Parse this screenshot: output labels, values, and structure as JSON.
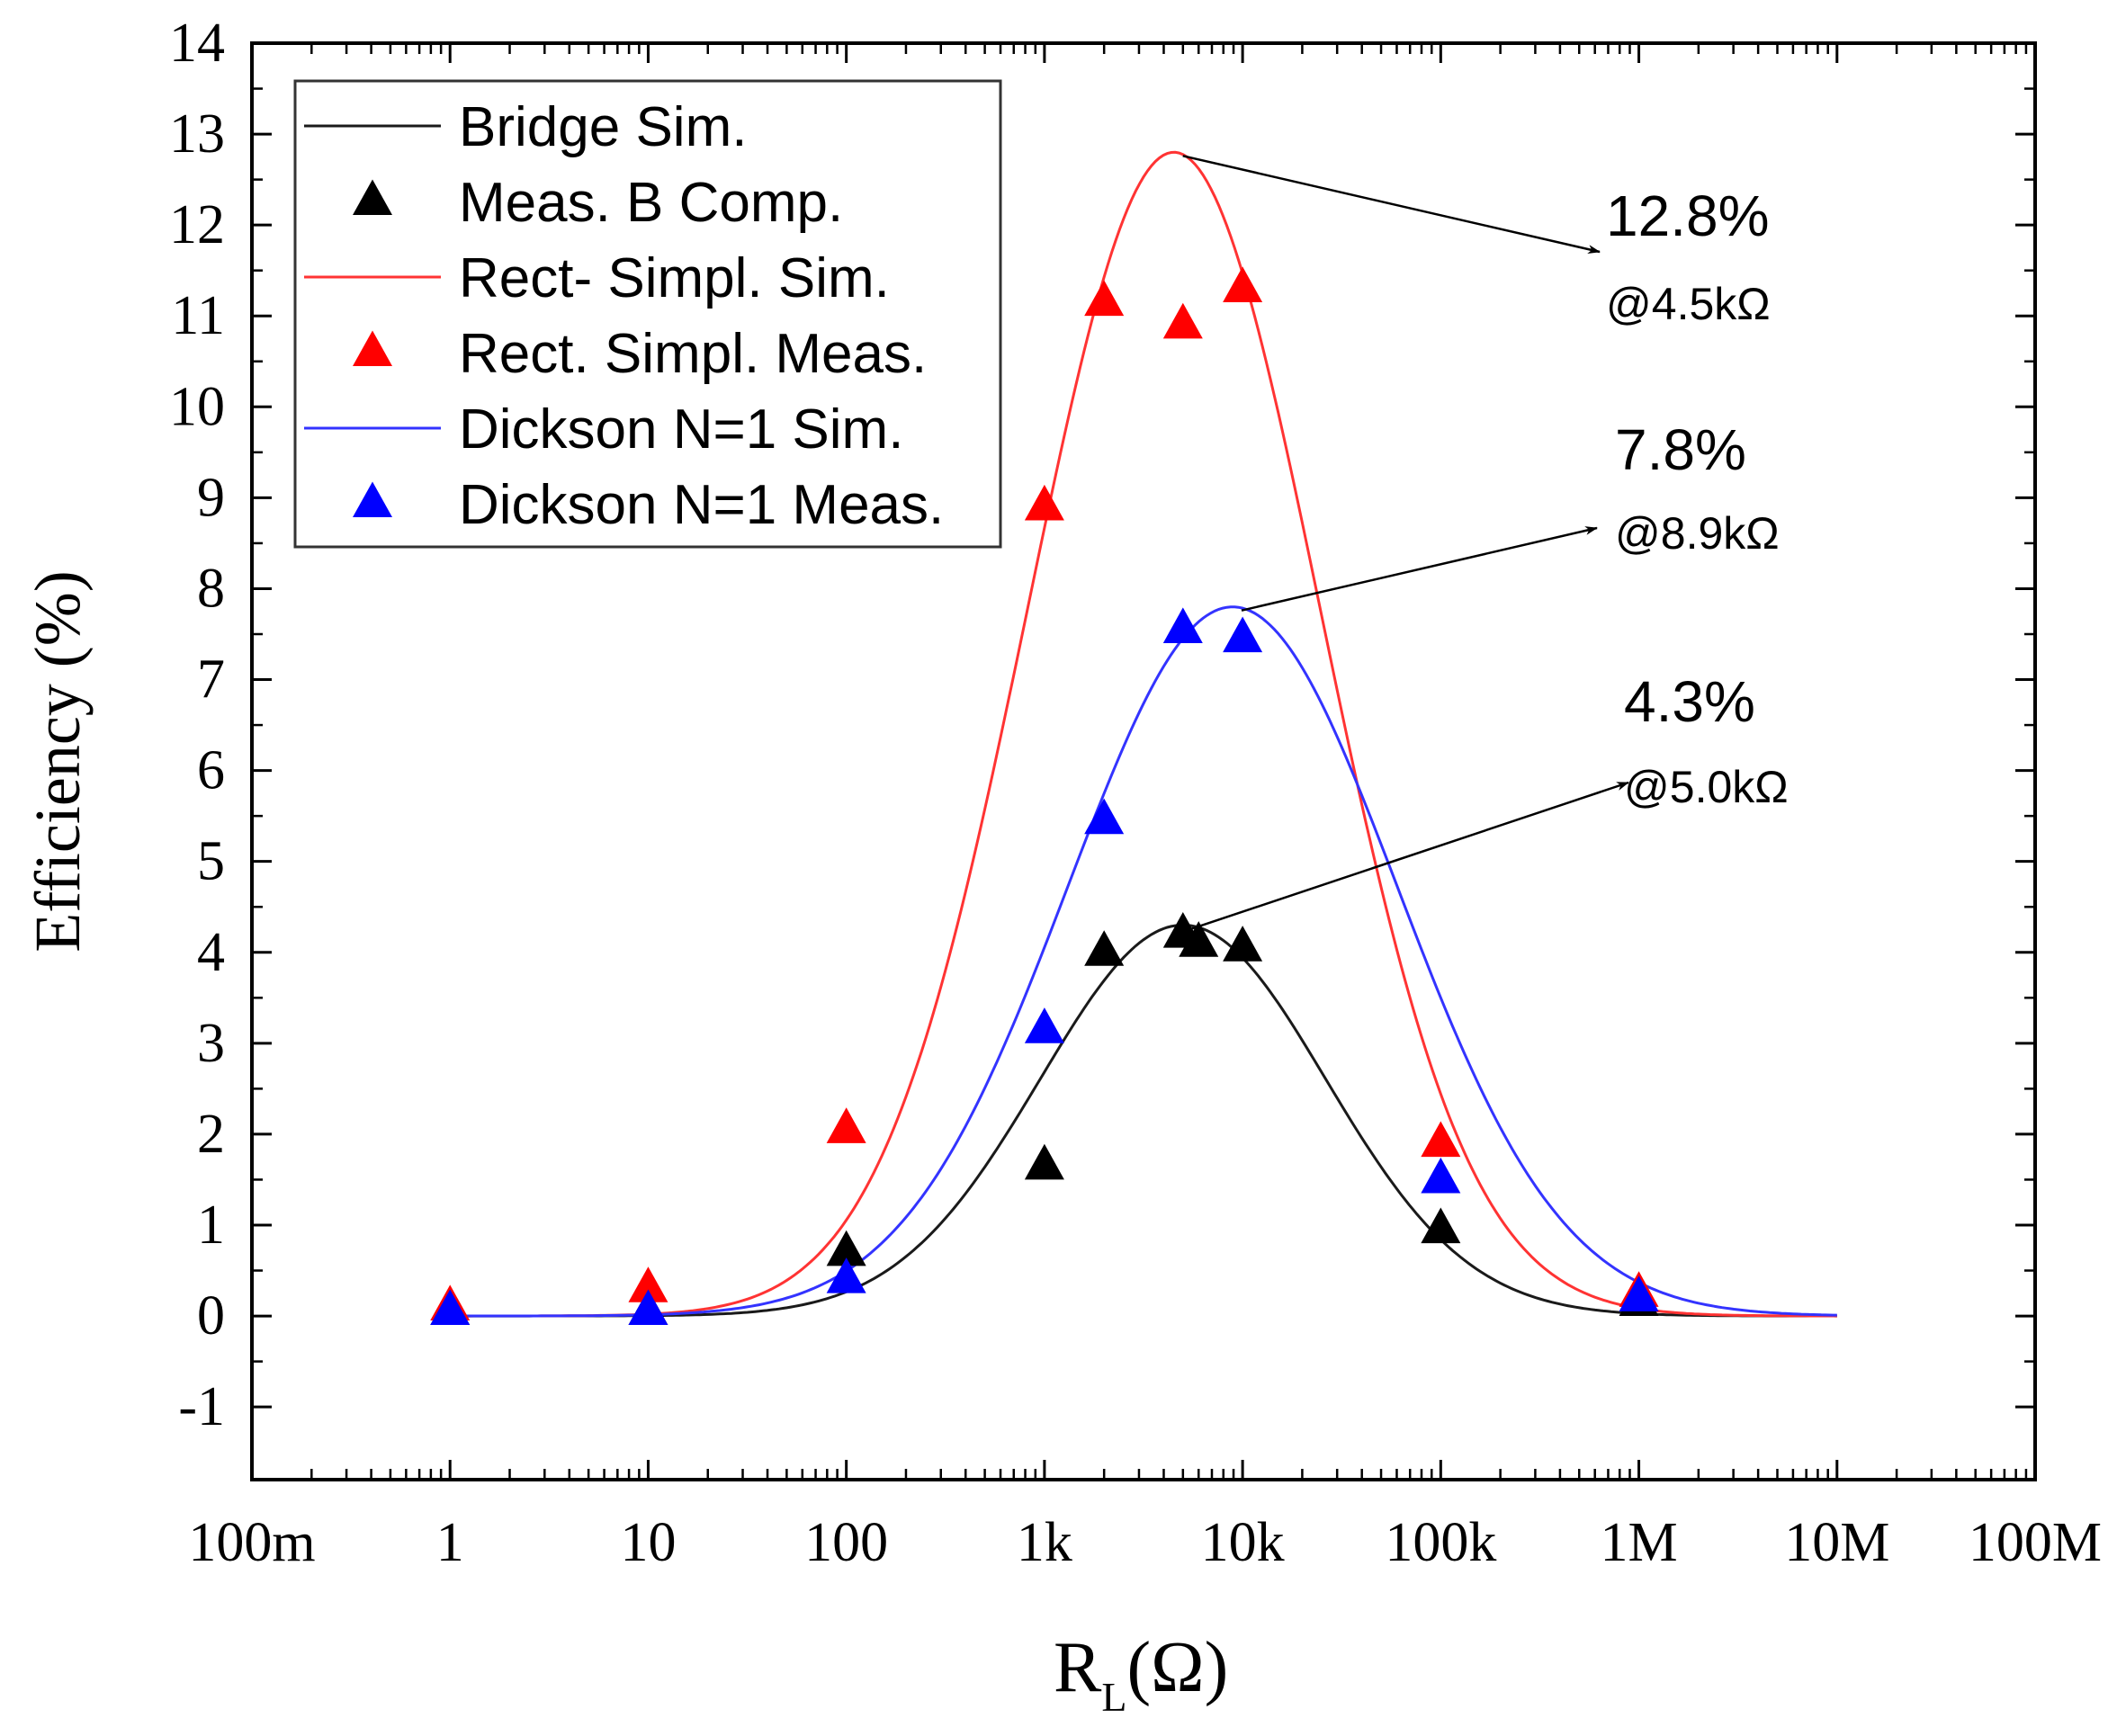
{
  "chart_data": {
    "type": "scatter",
    "title": "",
    "xlabel": "R",
    "xlabel_sub": "L",
    "xlabel_unit": "(Ω)",
    "ylabel": "Efficiency (%)",
    "xscale": "log",
    "xlim_log10": [
      -1,
      8
    ],
    "ylim": [
      -1.8,
      14
    ],
    "x_ticks": [
      {
        "value": 0.1,
        "label": "100m"
      },
      {
        "value": 1,
        "label": "1"
      },
      {
        "value": 10,
        "label": "10"
      },
      {
        "value": 100,
        "label": "100"
      },
      {
        "value": 1000,
        "label": "1k"
      },
      {
        "value": 10000,
        "label": "10k"
      },
      {
        "value": 100000,
        "label": "100k"
      },
      {
        "value": 1000000,
        "label": "1M"
      },
      {
        "value": 10000000,
        "label": "10M"
      },
      {
        "value": 100000000,
        "label": "100M"
      }
    ],
    "y_ticks": [
      -1,
      0,
      1,
      2,
      3,
      4,
      5,
      6,
      7,
      8,
      9,
      10,
      11,
      12,
      13,
      14
    ],
    "legend_position": "top-left",
    "series": [
      {
        "name": "Bridge Sim.",
        "kind": "line",
        "color": "#1a1a1a",
        "peak_value": 4.3,
        "peak_x": 5000,
        "sigma_decades": 0.72,
        "baseline": 0
      },
      {
        "name": "Meas. B Comp.",
        "kind": "marker",
        "color": "#000000",
        "x": [
          1,
          10,
          100,
          1000,
          2000,
          5000,
          6000,
          10000,
          100000,
          1000000
        ],
        "y": [
          0.05,
          0.05,
          0.7,
          1.65,
          4.0,
          4.2,
          4.1,
          4.05,
          0.95,
          0.15
        ]
      },
      {
        "name": "Rect- Simpl. Sim.",
        "kind": "line",
        "color": "#ff3333",
        "peak_value": 12.8,
        "peak_x": 4500,
        "sigma_decades": 0.74,
        "baseline": 0
      },
      {
        "name": "Rect. Simpl. Meas.",
        "kind": "marker",
        "color": "#ff0000",
        "x": [
          1,
          10,
          100,
          1000,
          2000,
          5000,
          10000,
          100000,
          1000000
        ],
        "y": [
          0.1,
          0.3,
          2.05,
          8.9,
          11.15,
          10.9,
          11.3,
          1.9,
          0.25
        ]
      },
      {
        "name": "Dickson N=1 Sim.",
        "kind": "line",
        "color": "#3333ff",
        "peak_value": 7.8,
        "peak_x": 8900,
        "sigma_decades": 0.83,
        "baseline": 0
      },
      {
        "name": "Dickson N=1 Meas.",
        "kind": "marker",
        "color": "#0000ff",
        "x": [
          1,
          10,
          100,
          1000,
          2000,
          5000,
          10000,
          100000,
          1000000
        ],
        "y": [
          0.05,
          0.05,
          0.4,
          3.15,
          5.45,
          7.55,
          7.45,
          1.5,
          0.2
        ]
      }
    ],
    "annotations": [
      {
        "value_text": "12.8%",
        "at_text": "@4.5kΩ",
        "peak_x": 4500,
        "peak_y": 12.8
      },
      {
        "value_text": "7.8%",
        "at_text": "@8.9kΩ",
        "peak_x": 8900,
        "peak_y": 7.8
      },
      {
        "value_text": "4.3%",
        "at_text": "@5.0kΩ",
        "peak_x": 5000,
        "peak_y": 4.3
      }
    ]
  }
}
